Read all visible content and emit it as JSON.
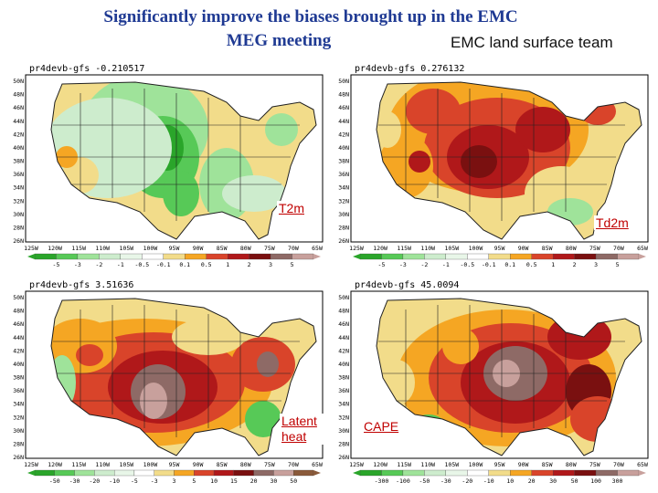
{
  "header": {
    "title_line1": "Significantly improve the biases brought up in the EMC",
    "title_line2": "MEG meeting",
    "team": "EMC land surface team"
  },
  "palette": {
    "neg3": "#2aa52a",
    "neg2": "#57c957",
    "neg1": "#9fe39a",
    "neg0": "#cdeccd",
    "white": "#ffffff",
    "pos0": "#f2dc8a",
    "pos1": "#f5a623",
    "pos2": "#d9442a",
    "pos3": "#b0181a",
    "pos4": "#7a1010",
    "pos5": "#8e6a66",
    "pos6": "#c8a09c",
    "state_line": "#202020",
    "accent": "#1f3a93"
  },
  "panels": [
    {
      "id": "t2m",
      "header": "pr4devb-gfs",
      "value": "-0.210517",
      "label": "T2m",
      "lat_labels": [
        "50N",
        "48N",
        "46N",
        "44N",
        "42N",
        "40N",
        "38N",
        "36N",
        "34N",
        "32N",
        "30N",
        "28N",
        "26N"
      ],
      "lon_labels": [
        "125W",
        "120W",
        "115W",
        "110W",
        "105W",
        "100W",
        "95W",
        "90W",
        "85W",
        "80W",
        "75W",
        "70W",
        "65W"
      ],
      "legend": [
        "-5",
        "-3",
        "-2",
        "-1",
        "-0.5",
        "-0.1",
        "0.1",
        "0.5",
        "1",
        "2",
        "3",
        "5"
      ]
    },
    {
      "id": "td2m",
      "header": "pr4devb-gfs",
      "value": "0.276132",
      "label": "Td2m",
      "lat_labels": [
        "50N",
        "48N",
        "46N",
        "44N",
        "42N",
        "40N",
        "38N",
        "36N",
        "34N",
        "32N",
        "30N",
        "28N",
        "26N"
      ],
      "lon_labels": [
        "125W",
        "120W",
        "115W",
        "110W",
        "105W",
        "100W",
        "95W",
        "90W",
        "85W",
        "80W",
        "75W",
        "70W",
        "65W"
      ],
      "legend": [
        "-5",
        "-3",
        "-2",
        "-1",
        "-0.5",
        "-0.1",
        "0.1",
        "0.5",
        "1",
        "2",
        "3",
        "5"
      ]
    },
    {
      "id": "latent",
      "header": "pr4devb-gfs",
      "value": "3.51636",
      "label": "Latent heat",
      "lat_labels": [
        "50N",
        "48N",
        "46N",
        "44N",
        "42N",
        "40N",
        "38N",
        "36N",
        "34N",
        "32N",
        "30N",
        "28N",
        "26N"
      ],
      "lon_labels": [
        "125W",
        "120W",
        "115W",
        "110W",
        "105W",
        "100W",
        "95W",
        "90W",
        "85W",
        "80W",
        "75W",
        "70W",
        "65W"
      ],
      "legend": [
        "-50",
        "-30",
        "-20",
        "-10",
        "-5",
        "-3",
        "3",
        "5",
        "10",
        "15",
        "20",
        "30",
        "50"
      ]
    },
    {
      "id": "cape",
      "header": "pr4devb-gfs",
      "value": "45.0094",
      "label": "CAPE",
      "lat_labels": [
        "50N",
        "48N",
        "46N",
        "44N",
        "42N",
        "40N",
        "38N",
        "36N",
        "34N",
        "32N",
        "30N",
        "28N",
        "26N"
      ],
      "lon_labels": [
        "125W",
        "120W",
        "115W",
        "110W",
        "105W",
        "100W",
        "95W",
        "90W",
        "85W",
        "80W",
        "75W",
        "70W",
        "65W"
      ],
      "legend": [
        "-300",
        "-100",
        "-50",
        "-30",
        "-20",
        "-10",
        "10",
        "20",
        "30",
        "50",
        "100",
        "300"
      ]
    }
  ]
}
